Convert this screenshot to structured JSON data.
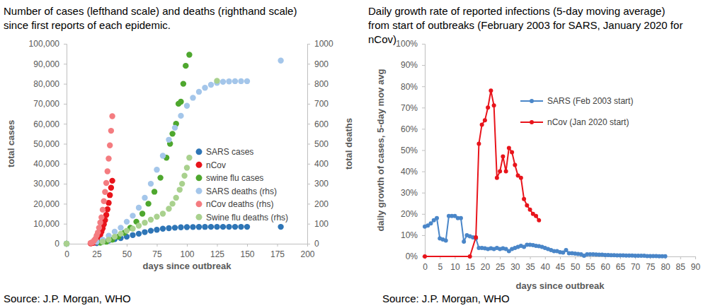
{
  "chart_data": [
    {
      "type": "scatter",
      "title": "Number of cases (lefthand scale) and deaths (righthand scale)\nsince first reports of each epidemic.",
      "x_label": "days since outbreak",
      "y_label": "total cases",
      "y2_label": "total deaths",
      "source": "Source: J.P. Morgan, WHO",
      "xlim": [
        0,
        200
      ],
      "xticks": [
        0,
        25,
        50,
        75,
        100,
        125,
        150,
        175,
        200
      ],
      "ylim": [
        0,
        100000
      ],
      "yticks": [
        0,
        {
          "value": 10000,
          "label": "10,000"
        },
        {
          "value": 20000,
          "label": "20,000"
        },
        {
          "value": 30000,
          "label": "30,000"
        },
        {
          "value": 40000,
          "label": "40,000"
        },
        {
          "value": 50000,
          "label": "50,000"
        },
        {
          "value": 60000,
          "label": "60,000"
        },
        {
          "value": 70000,
          "label": "70,000"
        },
        {
          "value": 80000,
          "label": "80,000"
        },
        {
          "value": 90000,
          "label": "90,000"
        },
        {
          "value": 100000,
          "label": "100,000"
        }
      ],
      "y2lim": [
        0,
        1000
      ],
      "y2ticks": [
        0,
        100,
        200,
        300,
        400,
        500,
        600,
        700,
        800,
        900,
        1000
      ],
      "grid": false,
      "legend": "right",
      "series": [
        {
          "name": "SARS cases",
          "color": "#2e75b6",
          "marker": "circle",
          "x": [
            0,
            25,
            30,
            35,
            40,
            45,
            50,
            55,
            60,
            65,
            70,
            75,
            80,
            85,
            90,
            95,
            100,
            105,
            110,
            115,
            120,
            125,
            130,
            135,
            140,
            145,
            150,
            178
          ],
          "values": [
            0,
            300,
            1000,
            1600,
            2300,
            2800,
            3500,
            4300,
            5000,
            5800,
            6500,
            7000,
            7500,
            7800,
            8000,
            8200,
            8300,
            8350,
            8400,
            8420,
            8430,
            8430,
            8430,
            8440,
            8440,
            8440,
            8440,
            8440
          ]
        },
        {
          "name": "nCov",
          "color": "#e8141b",
          "marker": "circle",
          "x": [
            20,
            21,
            22,
            23,
            24,
            25,
            26,
            27,
            28,
            29,
            30,
            31,
            32,
            33,
            34,
            35,
            36,
            37,
            38
          ],
          "values": [
            200,
            300,
            440,
            571,
            830,
            1287,
            1975,
            2744,
            4515,
            5974,
            7711,
            9692,
            11791,
            14380,
            17205,
            20438,
            24324,
            28018,
            31500
          ]
        },
        {
          "name": "swine flu cases",
          "color": "#4ea72e",
          "marker": "circle",
          "x": [
            0,
            28,
            33,
            38,
            43,
            48,
            53,
            58,
            63,
            68,
            73,
            78,
            83,
            86,
            88,
            91,
            93,
            95,
            97,
            99,
            102
          ],
          "values": [
            0,
            500,
            1000,
            2000,
            3500,
            5500,
            8000,
            11000,
            15000,
            20000,
            26000,
            33000,
            43000,
            50000,
            55000,
            60000,
            70000,
            71000,
            80000,
            89000,
            94500
          ]
        },
        {
          "name": "SARS deaths (rhs)",
          "color": "#a4c6ea",
          "marker": "circle",
          "axis": "y2",
          "x": [
            0,
            25,
            30,
            35,
            40,
            45,
            50,
            55,
            60,
            65,
            70,
            75,
            80,
            85,
            90,
            95,
            100,
            105,
            110,
            115,
            120,
            125,
            130,
            135,
            140,
            145,
            150,
            178
          ],
          "values": [
            0,
            10,
            20,
            40,
            60,
            80,
            110,
            140,
            180,
            230,
            300,
            370,
            440,
            520,
            580,
            640,
            690,
            730,
            760,
            780,
            795,
            805,
            810,
            812,
            813,
            813,
            813,
            916
          ]
        },
        {
          "name": "nCov deaths (rhs)",
          "color": "#f47c80",
          "marker": "circle",
          "axis": "y2",
          "x": [
            20,
            21,
            22,
            23,
            24,
            25,
            26,
            27,
            28,
            29,
            30,
            31,
            32,
            33,
            34,
            35,
            36,
            37,
            38
          ],
          "values": [
            4,
            6,
            9,
            17,
            25,
            41,
            56,
            80,
            106,
            132,
            170,
            213,
            259,
            304,
            362,
            426,
            492,
            565,
            638
          ]
        },
        {
          "name": "Swine flu deaths (rhs)",
          "color": "#a9d18e",
          "marker": "circle",
          "axis": "y2",
          "x": [
            0,
            30,
            35,
            40,
            45,
            50,
            55,
            60,
            65,
            70,
            75,
            80,
            85,
            88,
            91,
            94,
            96,
            98,
            100,
            102,
            125
          ],
          "values": [
            0,
            10,
            20,
            35,
            50,
            65,
            75,
            90,
            105,
            120,
            135,
            150,
            175,
            200,
            230,
            270,
            300,
            340,
            380,
            430,
            815
          ]
        }
      ]
    },
    {
      "type": "line",
      "title": "Daily growth rate of reported infections (5-day moving average)\nfrom start of outbreaks (February 2003 for SARS, January 2020 for\nnCov)",
      "x_label": "days since outbreak",
      "y_label": "daily growth of cases, 5-day mov avg",
      "source": "Source: J.P. Morgan, WHO",
      "xlim": [
        0,
        90
      ],
      "xticks": [
        0,
        5,
        10,
        15,
        20,
        25,
        30,
        35,
        40,
        45,
        50,
        55,
        60,
        65,
        70,
        75,
        80,
        85,
        90
      ],
      "ylim": [
        0,
        100
      ],
      "yticks": [
        {
          "value": 0,
          "label": "0%"
        },
        {
          "value": 10,
          "label": "10%"
        },
        {
          "value": 20,
          "label": "20%"
        },
        {
          "value": 30,
          "label": "30%"
        },
        {
          "value": 40,
          "label": "40%"
        },
        {
          "value": 50,
          "label": "50%"
        },
        {
          "value": 60,
          "label": "60%"
        },
        {
          "value": 70,
          "label": "70%"
        },
        {
          "value": 80,
          "label": "80%"
        },
        {
          "value": 90,
          "label": "90%"
        },
        {
          "value": 100,
          "label": "100%"
        }
      ],
      "grid": false,
      "legend": "top",
      "series": [
        {
          "name": "SARS (Feb 2003 start)",
          "color": "#4a86c8",
          "marker": "circle",
          "line_style": "solid",
          "x": [
            0,
            1,
            2,
            3,
            4,
            5,
            6,
            7,
            8,
            9,
            10,
            11,
            12,
            13,
            14,
            15,
            16,
            17,
            18,
            19,
            20,
            21,
            22,
            23,
            24,
            25,
            26,
            27,
            28,
            29,
            30,
            31,
            32,
            33,
            34,
            35,
            36,
            37,
            38,
            39,
            40,
            41,
            42,
            43,
            44,
            45,
            46,
            47,
            48,
            49,
            50,
            51,
            52,
            53,
            54,
            55,
            56,
            57,
            58,
            59,
            60,
            61,
            62,
            63,
            64,
            65,
            66,
            67,
            68,
            69,
            70,
            71,
            72,
            73,
            74,
            75,
            76,
            77,
            78,
            79,
            80
          ],
          "values": [
            14,
            14.5,
            15.5,
            17,
            18,
            8.5,
            8,
            7.5,
            19,
            19,
            19,
            18,
            18,
            7,
            10,
            9.5,
            9,
            8.5,
            4,
            4,
            3.8,
            3.5,
            3.8,
            3.5,
            4,
            3.5,
            3.8,
            3.5,
            2.5,
            3.5,
            4,
            4.5,
            5,
            4.5,
            5.5,
            5.5,
            5.3,
            5,
            4.8,
            4.5,
            4,
            3.5,
            3,
            2.5,
            2.5,
            2,
            1.8,
            3,
            1.5,
            1.5,
            1.3,
            1.2,
            1,
            0.3,
            1,
            1,
            1,
            0.9,
            0.8,
            0.8,
            0.7,
            0.7,
            0.6,
            0.6,
            0.5,
            0.5,
            0.5,
            0.4,
            0.4,
            0.4,
            0.3,
            0.3,
            0.3,
            0.3,
            0.2,
            0.2,
            0.2,
            0.2,
            0.1,
            0.1,
            0.1
          ]
        },
        {
          "name": "nCov (Jan 2020 start)",
          "color": "#e8141b",
          "marker": "circle",
          "line_style": "solid",
          "x": [
            0,
            15,
            17,
            18,
            19,
            20,
            21,
            22,
            23,
            24,
            25,
            26,
            27,
            28,
            29,
            30,
            31,
            32,
            33,
            34,
            35,
            36,
            37,
            38
          ],
          "values": [
            0,
            0,
            9,
            53,
            62,
            64,
            70,
            78,
            71,
            37,
            40,
            47,
            40,
            51,
            49,
            43,
            38,
            37,
            27,
            24,
            22,
            20,
            19,
            17
          ]
        }
      ]
    }
  ]
}
